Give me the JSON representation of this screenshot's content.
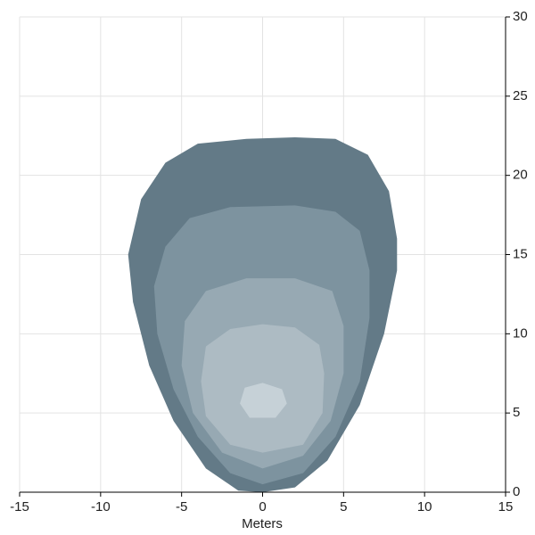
{
  "chart_data": {
    "type": "contour",
    "x_label": "Meters",
    "xlim": [
      -15,
      15
    ],
    "xticks": [
      -15,
      -10,
      -5,
      0,
      5,
      10,
      15
    ],
    "ylim": [
      0,
      30
    ],
    "yticks": [
      0,
      5,
      10,
      15,
      20,
      25,
      30
    ],
    "grid": true,
    "y_axis_side": "right",
    "series": [
      {
        "color": "#637a87",
        "x": [
          0,
          2,
          4,
          6,
          7.5,
          8.3,
          8.3,
          7.8,
          6.5,
          4.5,
          2,
          -1,
          -4,
          -6,
          -7.5,
          -8.3,
          -8,
          -7,
          -5.5,
          -3.5,
          -1.5
        ],
        "y": [
          0,
          0.3,
          2,
          5.5,
          10,
          14,
          16,
          19,
          21.3,
          22.3,
          22.4,
          22.3,
          22,
          20.8,
          18.5,
          15,
          12,
          8,
          4.5,
          1.5,
          0.1
        ]
      },
      {
        "color": "#7d939f",
        "x": [
          0,
          2.5,
          4.5,
          6,
          6.6,
          6.6,
          6,
          4.5,
          2,
          -2,
          -4.5,
          -6,
          -6.7,
          -6.5,
          -5.5,
          -4,
          -2
        ],
        "y": [
          0.5,
          1.2,
          3.5,
          7,
          11,
          14,
          16.5,
          17.7,
          18.1,
          18,
          17.3,
          15.5,
          13,
          10,
          6.5,
          3.5,
          1.2
        ]
      },
      {
        "color": "#97a9b3",
        "x": [
          0,
          2.5,
          4.2,
          5,
          5,
          4.3,
          2,
          -1,
          -3.5,
          -4.8,
          -5,
          -4.3,
          -2.5
        ],
        "y": [
          1.5,
          2.3,
          4.5,
          7.5,
          10.5,
          12.7,
          13.5,
          13.5,
          12.7,
          10.8,
          8,
          5,
          2.5
        ]
      },
      {
        "color": "#adbbc3",
        "x": [
          0,
          2.5,
          3.7,
          3.8,
          3.5,
          2,
          0,
          -2,
          -3.5,
          -3.8,
          -3.5,
          -2
        ],
        "y": [
          2.5,
          3,
          5,
          7.5,
          9.3,
          10.4,
          10.6,
          10.3,
          9.2,
          7,
          4.8,
          3
        ]
      },
      {
        "color": "#c6d1d7",
        "x": [
          -1.4,
          -0.8,
          0.8,
          1.5,
          1.2,
          0,
          -1.1
        ],
        "y": [
          5.6,
          4.7,
          4.7,
          5.6,
          6.5,
          6.9,
          6.6
        ]
      }
    ]
  }
}
